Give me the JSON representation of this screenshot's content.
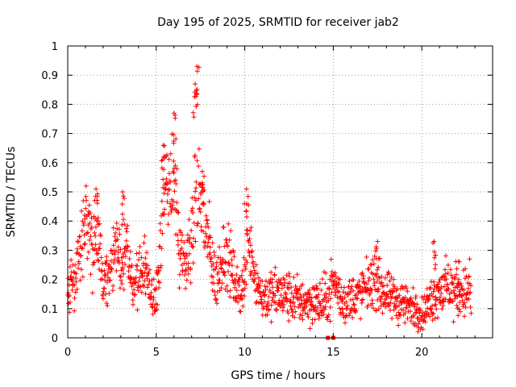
{
  "chart_data": {
    "type": "scatter",
    "title": "Day 195 of 2025, SRMTID for receiver jab2",
    "xlabel": "GPS time / hours",
    "ylabel": "SRMTID / TECUs",
    "xlim": [
      0,
      24
    ],
    "ylim": [
      0,
      1
    ],
    "x_ticks": [
      0,
      5,
      10,
      15,
      20
    ],
    "x_tick_labels": [
      "0",
      "5",
      "10",
      "15",
      "20"
    ],
    "y_ticks": [
      0,
      0.1,
      0.2,
      0.3,
      0.4,
      0.5,
      0.6,
      0.7,
      0.8,
      0.9,
      1
    ],
    "y_tick_labels": [
      "0",
      "0.1",
      "0.2",
      "0.3",
      "0.4",
      "0.5",
      "0.6",
      "0.7",
      "0.8",
      "0.9",
      "1"
    ],
    "grid": true,
    "marker": "+",
    "color": "#ff0000",
    "data_range_hours": [
      0,
      22.8
    ],
    "envelope": [
      [
        0.0,
        0.15,
        0.06
      ],
      [
        0.4,
        0.22,
        0.08
      ],
      [
        0.8,
        0.32,
        0.1
      ],
      [
        1.1,
        0.4,
        0.1
      ],
      [
        1.4,
        0.3,
        0.09
      ],
      [
        1.7,
        0.4,
        0.1
      ],
      [
        2.0,
        0.18,
        0.05
      ],
      [
        2.4,
        0.25,
        0.07
      ],
      [
        2.8,
        0.3,
        0.08
      ],
      [
        3.1,
        0.2,
        0.07
      ],
      [
        3.3,
        0.38,
        0.1
      ],
      [
        3.6,
        0.17,
        0.06
      ],
      [
        4.0,
        0.22,
        0.07
      ],
      [
        4.4,
        0.24,
        0.07
      ],
      [
        4.8,
        0.12,
        0.05
      ],
      [
        5.1,
        0.2,
        0.08
      ],
      [
        5.4,
        0.5,
        0.14
      ],
      [
        5.7,
        0.45,
        0.14
      ],
      [
        6.0,
        0.6,
        0.15
      ],
      [
        6.3,
        0.28,
        0.08
      ],
      [
        6.7,
        0.25,
        0.08
      ],
      [
        7.0,
        0.35,
        0.12
      ],
      [
        7.3,
        0.55,
        0.18
      ],
      [
        7.6,
        0.45,
        0.15
      ],
      [
        8.0,
        0.3,
        0.1
      ],
      [
        8.4,
        0.18,
        0.07
      ],
      [
        8.8,
        0.3,
        0.1
      ],
      [
        9.2,
        0.25,
        0.08
      ],
      [
        9.6,
        0.15,
        0.06
      ],
      [
        10.0,
        0.2,
        0.08
      ],
      [
        10.2,
        0.38,
        0.1
      ],
      [
        10.6,
        0.2,
        0.07
      ],
      [
        11.0,
        0.14,
        0.06
      ],
      [
        12.0,
        0.15,
        0.07
      ],
      [
        13.0,
        0.13,
        0.06
      ],
      [
        14.0,
        0.12,
        0.06
      ],
      [
        14.6,
        0.12,
        0.07
      ],
      [
        15.0,
        0.2,
        0.06
      ],
      [
        15.5,
        0.12,
        0.06
      ],
      [
        16.5,
        0.15,
        0.06
      ],
      [
        17.3,
        0.2,
        0.07
      ],
      [
        18.0,
        0.14,
        0.06
      ],
      [
        19.0,
        0.12,
        0.06
      ],
      [
        20.0,
        0.08,
        0.04
      ],
      [
        21.0,
        0.17,
        0.07
      ],
      [
        22.0,
        0.16,
        0.07
      ],
      [
        22.8,
        0.16,
        0.07
      ]
    ],
    "peaks": [
      [
        1.6,
        0.51
      ],
      [
        3.1,
        0.5
      ],
      [
        5.4,
        0.66
      ],
      [
        6.0,
        0.77
      ],
      [
        7.2,
        0.87
      ],
      [
        7.3,
        0.93
      ],
      [
        7.6,
        0.57
      ],
      [
        10.1,
        0.51
      ],
      [
        17.5,
        0.33
      ],
      [
        20.7,
        0.33
      ],
      [
        22.1,
        0.26
      ]
    ],
    "outliers": [
      [
        14.7,
        0.0
      ],
      [
        15.0,
        0.0
      ]
    ]
  }
}
